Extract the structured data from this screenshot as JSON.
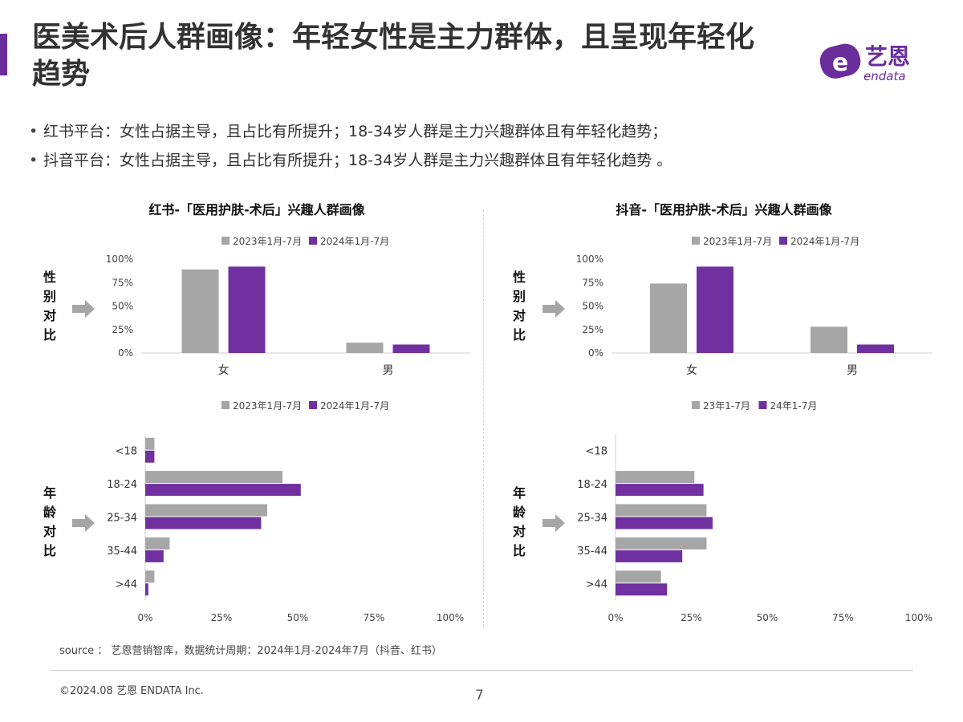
{
  "page": {
    "title": "医美术后人群画像：年轻女性是主力群体，且呈现年轻化趋势",
    "bullets": [
      "红书平台：女性占据主导，且占比有所提升；18-34岁人群是主力兴趣群体且有年轻化趋势；",
      "抖音平台：女性占据主导，且占比有所提升；18-34岁人群是主力兴趣群体且有年轻化趋势 。"
    ],
    "bullet_symbol": "•",
    "source": "source ： 艺恩营销智库，数据统计周期：2024年1月-2024年7月（抖音、红书）",
    "copyright": "©2024.08  艺恩  ENDATA Inc.",
    "page_number": "7"
  },
  "logo": {
    "cn": "艺恩",
    "en": "endata",
    "letter": "e",
    "color": "#6a2d9c"
  },
  "panels": [
    {
      "title": "红书-「医用护肤-术后」兴趣人群画像",
      "gender_label": "性别对比",
      "age_label": "年龄对比"
    },
    {
      "title": "抖音-「医用护肤-术后」兴趣人群画像",
      "gender_label": "性别对比",
      "age_label": "年龄对比"
    }
  ],
  "colors": {
    "accent": "#6a2d9c",
    "series_2023": "#a6a6a6",
    "series_2024": "#7030a0",
    "arrow": "#a6a6a6"
  },
  "chart_data": [
    {
      "type": "bar",
      "panel": "红书",
      "topic": "gender",
      "categories": [
        "女",
        "男"
      ],
      "series": [
        {
          "name": "2023年1月-7月",
          "values": [
            89,
            11
          ]
        },
        {
          "name": "2024年1月-7月",
          "values": [
            92,
            9
          ]
        }
      ],
      "ylim": [
        0,
        100
      ],
      "yticks": [
        "0%",
        "25%",
        "50%",
        "75%",
        "100%"
      ],
      "legend": "top"
    },
    {
      "type": "bar",
      "panel": "抖音",
      "topic": "gender",
      "categories": [
        "女",
        "男"
      ],
      "series": [
        {
          "name": "2023年1月-7月",
          "values": [
            74,
            28
          ]
        },
        {
          "name": "2024年1月-7月",
          "values": [
            92,
            9
          ]
        }
      ],
      "ylim": [
        0,
        100
      ],
      "yticks": [
        "0%",
        "25%",
        "50%",
        "75%",
        "100%"
      ],
      "legend": "top"
    },
    {
      "type": "bar",
      "orientation": "horizontal",
      "panel": "红书",
      "topic": "age",
      "categories": [
        "<18",
        "18-24",
        "25-34",
        "35-44",
        ">44"
      ],
      "series": [
        {
          "name": "2023年1月-7月",
          "values": [
            3,
            45,
            40,
            8,
            3
          ]
        },
        {
          "name": "2024年1月-7月",
          "values": [
            3,
            51,
            38,
            6,
            1
          ]
        }
      ],
      "xlim": [
        0,
        100
      ],
      "xticks": [
        "0%",
        "25%",
        "50%",
        "75%",
        "100%"
      ],
      "legend": "top"
    },
    {
      "type": "bar",
      "orientation": "horizontal",
      "panel": "抖音",
      "topic": "age",
      "categories": [
        "<18",
        "18-24",
        "25-34",
        "35-44",
        ">44"
      ],
      "series": [
        {
          "name": "23年1-7月",
          "values": [
            0,
            26,
            30,
            30,
            15
          ]
        },
        {
          "name": "24年1-7月",
          "values": [
            0,
            29,
            32,
            22,
            17
          ]
        }
      ],
      "xlim": [
        0,
        100
      ],
      "xticks": [
        "0%",
        "25%",
        "50%",
        "75%",
        "100%"
      ],
      "legend": "top"
    }
  ]
}
